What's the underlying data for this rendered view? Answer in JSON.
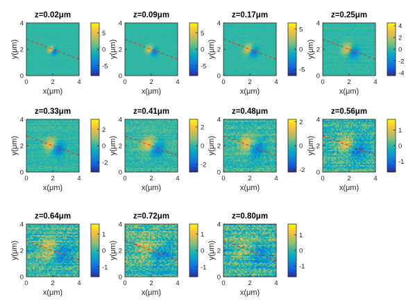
{
  "colormap": [
    "#352a87",
    "#0f5cdd",
    "#1481d6",
    "#06a4ca",
    "#2eb7a4",
    "#87bf77",
    "#d1bb59",
    "#fec832",
    "#f9fb0e"
  ],
  "line_color": "#d9362b",
  "chart_data": [
    {
      "type": "heatmap",
      "title": "z=0.02μm",
      "xlabel": "x(μm)",
      "ylabel": "y(μm)",
      "xlim": [
        0,
        4
      ],
      "ylim": [
        0,
        4
      ],
      "xticks": [
        "0",
        "2",
        "4"
      ],
      "yticks": [
        "0",
        "2",
        "4"
      ],
      "clim": [
        -8,
        8
      ],
      "colorbar_ticks": [
        {
          "value": 5,
          "label": "5"
        },
        {
          "value": 0,
          "label": "0"
        },
        {
          "value": -5,
          "label": "-5"
        }
      ],
      "dipole": {
        "center": [
          2.0,
          1.9
        ],
        "amplitude": 8,
        "width": 0.18
      },
      "noise": 0.2,
      "cut_line": [
        [
          0,
          2.75
        ],
        [
          4,
          1.25
        ]
      ]
    },
    {
      "type": "heatmap",
      "title": "z=0.09μm",
      "xlabel": "x(μm)",
      "ylabel": "y(μm)",
      "xlim": [
        0,
        4
      ],
      "ylim": [
        0,
        4
      ],
      "xticks": [
        "0",
        "2",
        "4"
      ],
      "yticks": [
        "0",
        "2",
        "4"
      ],
      "clim": [
        -8,
        8
      ],
      "colorbar_ticks": [
        {
          "value": 5,
          "label": "5"
        },
        {
          "value": 0,
          "label": "0"
        },
        {
          "value": -5,
          "label": "-5"
        }
      ],
      "dipole": {
        "center": [
          2.05,
          1.9
        ],
        "amplitude": 7.5,
        "width": 0.22
      },
      "noise": 0.2,
      "cut_line": [
        [
          0,
          2.75
        ],
        [
          4,
          1.25
        ]
      ]
    },
    {
      "type": "heatmap",
      "title": "z=0.17μm",
      "xlabel": "x(μm)",
      "ylabel": "y(μm)",
      "xlim": [
        0,
        4
      ],
      "ylim": [
        0,
        4
      ],
      "xticks": [
        "0",
        "2",
        "4"
      ],
      "yticks": [
        "0",
        "2",
        "4"
      ],
      "clim": [
        -6.5,
        6.5
      ],
      "colorbar_ticks": [
        {
          "value": 5,
          "label": "5"
        },
        {
          "value": 0,
          "label": "0"
        },
        {
          "value": -5,
          "label": "-5"
        }
      ],
      "dipole": {
        "center": [
          2.1,
          1.9
        ],
        "amplitude": 6,
        "width": 0.27
      },
      "noise": 0.2,
      "cut_line": [
        [
          0,
          2.75
        ],
        [
          4,
          1.25
        ]
      ]
    },
    {
      "type": "heatmap",
      "title": "z=0.25μm",
      "xlabel": "x(μm)",
      "ylabel": "y(μm)",
      "xlim": [
        0,
        4
      ],
      "ylim": [
        0,
        4
      ],
      "xticks": [
        "0",
        "2",
        "4"
      ],
      "yticks": [
        "0",
        "2",
        "4"
      ],
      "clim": [
        -4.5,
        4.5
      ],
      "colorbar_ticks": [
        {
          "value": 4,
          "label": "4"
        },
        {
          "value": 2,
          "label": "2"
        },
        {
          "value": 0,
          "label": "0"
        },
        {
          "value": -2,
          "label": "-2"
        },
        {
          "value": -4,
          "label": "-4"
        }
      ],
      "dipole": {
        "center": [
          2.1,
          1.9
        ],
        "amplitude": 4.2,
        "width": 0.32
      },
      "noise": 0.25,
      "cut_line": [
        [
          0,
          2.75
        ],
        [
          4,
          1.25
        ]
      ]
    },
    {
      "type": "heatmap",
      "title": "z=0.33μm",
      "xlabel": "x(μm)",
      "ylabel": "y(μm)",
      "xlim": [
        0,
        4
      ],
      "ylim": [
        0,
        4
      ],
      "xticks": [
        "0",
        "2",
        "4"
      ],
      "yticks": [
        "0",
        "2",
        "4"
      ],
      "clim": [
        -3.2,
        3.2
      ],
      "colorbar_ticks": [
        {
          "value": 2,
          "label": "2"
        },
        {
          "value": 0,
          "label": "0"
        },
        {
          "value": -2,
          "label": "-2"
        }
      ],
      "dipole": {
        "center": [
          2.15,
          1.9
        ],
        "amplitude": 3,
        "width": 0.38
      },
      "noise": 0.3,
      "cut_line": [
        [
          0,
          2.75
        ],
        [
          4,
          1.25
        ]
      ]
    },
    {
      "type": "heatmap",
      "title": "z=0.41μm",
      "xlabel": "x(μm)",
      "ylabel": "y(μm)",
      "xlim": [
        0,
        4
      ],
      "ylim": [
        0,
        4
      ],
      "xticks": [
        "0",
        "2",
        "4"
      ],
      "yticks": [
        "0",
        "2",
        "4"
      ],
      "clim": [
        -2.8,
        2.8
      ],
      "colorbar_ticks": [
        {
          "value": 2,
          "label": "2"
        },
        {
          "value": 0,
          "label": "0"
        },
        {
          "value": -2,
          "label": "-2"
        }
      ],
      "dipole": {
        "center": [
          2.15,
          1.9
        ],
        "amplitude": 2.5,
        "width": 0.43
      },
      "noise": 0.35,
      "cut_line": [
        [
          0,
          2.75
        ],
        [
          4,
          1.25
        ]
      ]
    },
    {
      "type": "heatmap",
      "title": "z=0.48μm",
      "xlabel": "x(μm)",
      "ylabel": "y(μm)",
      "xlim": [
        0,
        4
      ],
      "ylim": [
        0,
        4
      ],
      "xticks": [
        "0",
        "2",
        "4"
      ],
      "yticks": [
        "0",
        "2",
        "4"
      ],
      "clim": [
        -2.2,
        2.2
      ],
      "colorbar_ticks": [
        {
          "value": 2,
          "label": "2"
        },
        {
          "value": 0,
          "label": "0"
        },
        {
          "value": -2,
          "label": "-2"
        }
      ],
      "dipole": {
        "center": [
          2.2,
          1.9
        ],
        "amplitude": 1.9,
        "width": 0.48
      },
      "noise": 0.4,
      "cut_line": [
        [
          0,
          2.75
        ],
        [
          4,
          1.25
        ]
      ]
    },
    {
      "type": "heatmap",
      "title": "z=0.56μm",
      "xlabel": "x(μm)",
      "ylabel": "y(μm)",
      "xlim": [
        0,
        4
      ],
      "ylim": [
        0,
        4
      ],
      "xticks": [
        "0",
        "2",
        "4"
      ],
      "yticks": [
        "0",
        "2",
        "4"
      ],
      "clim": [
        -1.7,
        1.7
      ],
      "colorbar_ticks": [
        {
          "value": 1,
          "label": "1"
        },
        {
          "value": 0,
          "label": "0"
        },
        {
          "value": -1,
          "label": "-1"
        }
      ],
      "dipole": {
        "center": [
          2.2,
          1.9
        ],
        "amplitude": 1.4,
        "width": 0.55
      },
      "noise": 0.45,
      "cut_line": [
        [
          0,
          2.75
        ],
        [
          4,
          1.25
        ]
      ]
    },
    {
      "type": "heatmap",
      "title": "z=0.64μm",
      "xlabel": "x(μm)",
      "ylabel": "y(μm)",
      "xlim": [
        0,
        4
      ],
      "ylim": [
        0,
        4
      ],
      "xticks": [
        "0",
        "2",
        "4"
      ],
      "yticks": [
        "0",
        "2",
        "4"
      ],
      "clim": [
        -1.6,
        1.6
      ],
      "colorbar_ticks": [
        {
          "value": 1,
          "label": "1"
        },
        {
          "value": 0,
          "label": "0"
        },
        {
          "value": -1,
          "label": "-1"
        }
      ],
      "dipole": {
        "center": [
          2.2,
          1.9
        ],
        "amplitude": 1.2,
        "width": 0.62
      },
      "noise": 0.45,
      "cut_line": [
        [
          0,
          2.75
        ],
        [
          4,
          1.25
        ]
      ]
    },
    {
      "type": "heatmap",
      "title": "z=0.72μm",
      "xlabel": "x(μm)",
      "ylabel": "y(μm)",
      "xlim": [
        0,
        4
      ],
      "ylim": [
        0,
        4
      ],
      "xticks": [
        "0",
        "2",
        "4"
      ],
      "yticks": [
        "0",
        "2",
        "4"
      ],
      "clim": [
        -1.6,
        1.6
      ],
      "colorbar_ticks": [
        {
          "value": 1,
          "label": "1"
        },
        {
          "value": 0,
          "label": "0"
        },
        {
          "value": -1,
          "label": "-1"
        }
      ],
      "dipole": {
        "center": [
          2.2,
          1.9
        ],
        "amplitude": 1.0,
        "width": 0.68
      },
      "noise": 0.5,
      "cut_line": [
        [
          0,
          2.75
        ],
        [
          4,
          1.25
        ]
      ]
    },
    {
      "type": "heatmap",
      "title": "z=0.80μm",
      "xlabel": "x(μm)",
      "ylabel": "y(μm)",
      "xlim": [
        0,
        4
      ],
      "ylim": [
        0,
        4
      ],
      "xticks": [
        "0",
        "2",
        "4"
      ],
      "yticks": [
        "0",
        "2",
        "4"
      ],
      "clim": [
        -1.7,
        1.7
      ],
      "colorbar_ticks": [
        {
          "value": 1,
          "label": "1"
        },
        {
          "value": 0,
          "label": "0"
        },
        {
          "value": -1,
          "label": "-1"
        }
      ],
      "dipole": {
        "center": [
          2.2,
          1.9
        ],
        "amplitude": 0.8,
        "width": 0.75
      },
      "noise": 0.55,
      "cut_line": [
        [
          0,
          2.75
        ],
        [
          4,
          1.25
        ]
      ]
    }
  ]
}
